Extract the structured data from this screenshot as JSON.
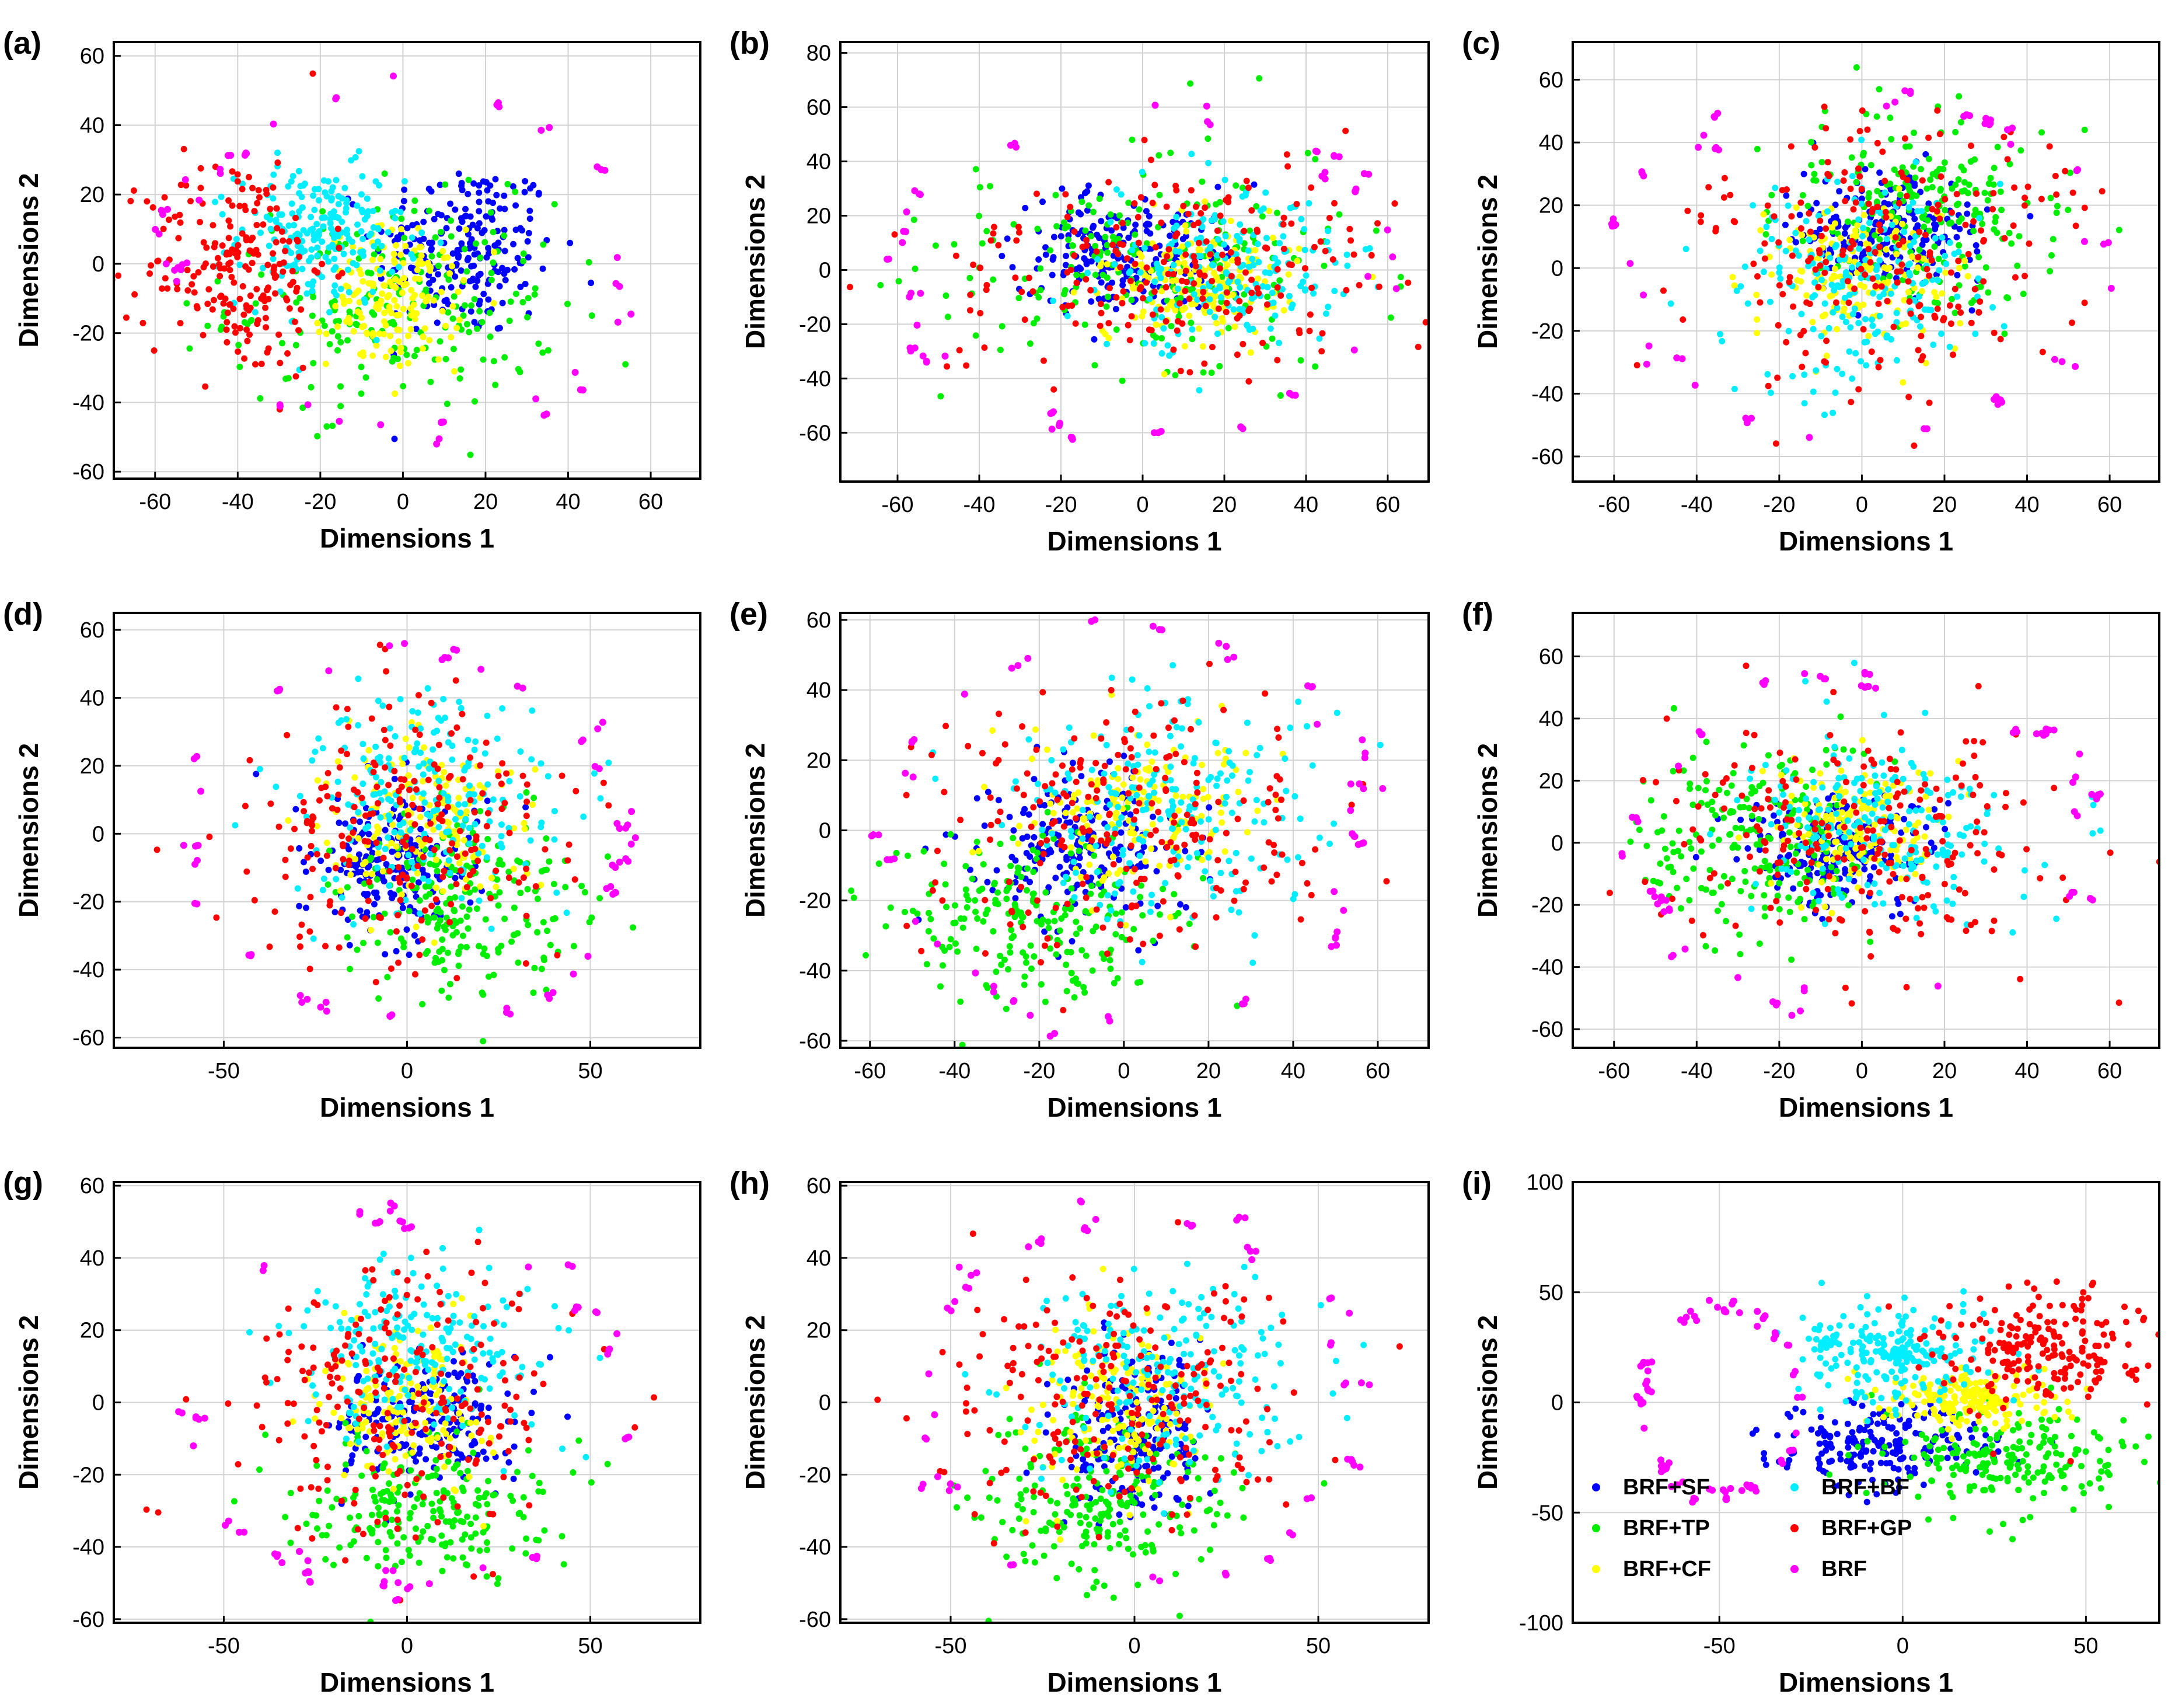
{
  "colors": {
    "BRF+SF": "#0000ff",
    "BRF+TP": "#00ee00",
    "BRF+CF": "#ffff00",
    "BRF+BF": "#00eeff",
    "BRF+GP": "#ff0000",
    "BRF": "#ff00ff",
    "grid": "#d2d2d2",
    "frame": "#000000"
  },
  "legend": {
    "panel": "(i)",
    "entries": [
      "BRF+SF",
      "BRF+TP",
      "BRF+CF",
      "BRF+BF",
      "BRF+GP",
      "BRF"
    ]
  },
  "chart_data": [
    {
      "type": "scatter",
      "panel": "(a)",
      "xlabel": "Dimensions 1",
      "ylabel": "Dimensions 2",
      "xlim": [
        -70,
        72
      ],
      "ylim": [
        -62,
        64
      ],
      "xticks": [
        -60,
        -40,
        -20,
        0,
        20,
        40,
        60
      ],
      "yticks": [
        -60,
        -40,
        -20,
        0,
        20,
        40,
        60
      ],
      "series": [
        {
          "name": "BRF+SF",
          "center": [
            15,
            4
          ],
          "spread": [
            11,
            13
          ],
          "count": 220
        },
        {
          "name": "BRF+TP",
          "center": [
            -2,
            -12
          ],
          "spread": [
            20,
            15
          ],
          "count": 220
        },
        {
          "name": "BRF+CF",
          "center": [
            -2,
            -10
          ],
          "spread": [
            8,
            10
          ],
          "count": 170
        },
        {
          "name": "BRF+BF",
          "center": [
            -20,
            8
          ],
          "spread": [
            10,
            10
          ],
          "count": 220
        },
        {
          "name": "BRF+GP",
          "center": [
            -40,
            0
          ],
          "spread": [
            11,
            16
          ],
          "count": 210
        },
        {
          "name": "BRF",
          "center": [
            0,
            0
          ],
          "radius": [
            58,
            52
          ],
          "count": 33,
          "outer": true
        }
      ]
    },
    {
      "type": "scatter",
      "panel": "(b)",
      "xlabel": "Dimensions 1",
      "ylabel": "Dimensions 2",
      "xlim": [
        -74,
        70
      ],
      "ylim": [
        -78,
        84
      ],
      "xticks": [
        -60,
        -40,
        -20,
        0,
        20,
        40,
        60
      ],
      "yticks": [
        -60,
        -40,
        -20,
        0,
        20,
        40,
        60,
        80
      ],
      "series": [
        {
          "name": "BRF+SF",
          "center": [
            -5,
            5
          ],
          "spread": [
            13,
            11
          ],
          "count": 200
        },
        {
          "name": "BRF+TP",
          "center": [
            0,
            0
          ],
          "spread": [
            24,
            18
          ],
          "count": 220
        },
        {
          "name": "BRF+CF",
          "center": [
            15,
            -5
          ],
          "spread": [
            11,
            11
          ],
          "count": 190
        },
        {
          "name": "BRF+BF",
          "center": [
            20,
            0
          ],
          "spread": [
            15,
            15
          ],
          "count": 200
        },
        {
          "name": "BRF+GP",
          "center": [
            10,
            0
          ],
          "spread": [
            26,
            20
          ],
          "count": 220
        },
        {
          "name": "BRF",
          "center": [
            0,
            0
          ],
          "radius": [
            62,
            62
          ],
          "count": 32,
          "outer": true
        }
      ]
    },
    {
      "type": "scatter",
      "panel": "(c)",
      "xlabel": "Dimensions 1",
      "ylabel": "Dimensions 2",
      "xlim": [
        -70,
        72
      ],
      "ylim": [
        -68,
        72
      ],
      "xticks": [
        -60,
        -40,
        -20,
        0,
        20,
        40,
        60
      ],
      "yticks": [
        -60,
        -40,
        -20,
        0,
        20,
        40,
        60
      ],
      "series": [
        {
          "name": "BRF+SF",
          "center": [
            5,
            12
          ],
          "spread": [
            11,
            9
          ],
          "count": 200
        },
        {
          "name": "BRF+TP",
          "center": [
            15,
            18
          ],
          "spread": [
            15,
            16
          ],
          "count": 220
        },
        {
          "name": "BRF+CF",
          "center": [
            0,
            -2
          ],
          "spread": [
            11,
            12
          ],
          "count": 170
        },
        {
          "name": "BRF+BF",
          "center": [
            0,
            -5
          ],
          "spread": [
            14,
            16
          ],
          "count": 210
        },
        {
          "name": "BRF+GP",
          "center": [
            5,
            5
          ],
          "spread": [
            23,
            20
          ],
          "count": 220
        },
        {
          "name": "BRF",
          "center": [
            0,
            0
          ],
          "radius": [
            60,
            58
          ],
          "count": 32,
          "outer": true
        }
      ]
    },
    {
      "type": "scatter",
      "panel": "(d)",
      "xlabel": "Dimensions 1",
      "ylabel": "Dimensions 2",
      "xlim": [
        -80,
        80
      ],
      "ylim": [
        -63,
        65
      ],
      "xticks": [
        -50,
        0,
        50
      ],
      "yticks": [
        -60,
        -40,
        -20,
        0,
        20,
        40,
        60
      ],
      "series": [
        {
          "name": "BRF+SF",
          "center": [
            -5,
            -8
          ],
          "spread": [
            11,
            11
          ],
          "count": 200
        },
        {
          "name": "BRF+TP",
          "center": [
            15,
            -20
          ],
          "spread": [
            16,
            14
          ],
          "count": 220
        },
        {
          "name": "BRF+CF",
          "center": [
            5,
            3
          ],
          "spread": [
            12,
            12
          ],
          "count": 170
        },
        {
          "name": "BRF+BF",
          "center": [
            5,
            12
          ],
          "spread": [
            18,
            16
          ],
          "count": 210
        },
        {
          "name": "BRF+GP",
          "center": [
            0,
            0
          ],
          "spread": [
            22,
            20
          ],
          "count": 220
        },
        {
          "name": "BRF",
          "center": [
            0,
            0
          ],
          "radius": [
            62,
            58
          ],
          "count": 34,
          "outer": true
        }
      ]
    },
    {
      "type": "scatter",
      "panel": "(e)",
      "xlabel": "Dimensions 1",
      "ylabel": "Dimensions 2",
      "xlim": [
        -67,
        72
      ],
      "ylim": [
        -62,
        62
      ],
      "xticks": [
        -60,
        -40,
        -20,
        0,
        20,
        40,
        60
      ],
      "yticks": [
        -60,
        -40,
        -20,
        0,
        20,
        40,
        60
      ],
      "series": [
        {
          "name": "BRF+SF",
          "center": [
            -10,
            -5
          ],
          "spread": [
            12,
            11
          ],
          "count": 200
        },
        {
          "name": "BRF+TP",
          "center": [
            -20,
            -25
          ],
          "spread": [
            17,
            13
          ],
          "count": 220
        },
        {
          "name": "BRF+CF",
          "center": [
            5,
            5
          ],
          "spread": [
            14,
            12
          ],
          "count": 170
        },
        {
          "name": "BRF+BF",
          "center": [
            10,
            5
          ],
          "spread": [
            18,
            16
          ],
          "count": 210
        },
        {
          "name": "BRF+GP",
          "center": [
            0,
            0
          ],
          "spread": [
            24,
            20
          ],
          "count": 220
        },
        {
          "name": "BRF",
          "center": [
            0,
            0
          ],
          "radius": [
            60,
            58
          ],
          "count": 33,
          "outer": true
        }
      ]
    },
    {
      "type": "scatter",
      "panel": "(f)",
      "xlabel": "Dimensions 1",
      "ylabel": "Dimensions 2",
      "xlim": [
        -70,
        72
      ],
      "ylim": [
        -66,
        74
      ],
      "xticks": [
        -60,
        -40,
        -20,
        0,
        20,
        40,
        60
      ],
      "yticks": [
        -60,
        -40,
        -20,
        0,
        20,
        40,
        60
      ],
      "series": [
        {
          "name": "BRF+SF",
          "center": [
            -5,
            -3
          ],
          "spread": [
            12,
            9
          ],
          "count": 200
        },
        {
          "name": "BRF+TP",
          "center": [
            -25,
            0
          ],
          "spread": [
            14,
            17
          ],
          "count": 220
        },
        {
          "name": "BRF+CF",
          "center": [
            0,
            5
          ],
          "spread": [
            10,
            10
          ],
          "count": 170
        },
        {
          "name": "BRF+BF",
          "center": [
            5,
            5
          ],
          "spread": [
            16,
            14
          ],
          "count": 210
        },
        {
          "name": "BRF+GP",
          "center": [
            0,
            0
          ],
          "spread": [
            23,
            18
          ],
          "count": 220
        },
        {
          "name": "BRF",
          "center": [
            0,
            0
          ],
          "radius": [
            58,
            56
          ],
          "count": 32,
          "outer": true
        }
      ]
    },
    {
      "type": "scatter",
      "panel": "(g)",
      "xlabel": "Dimensions 1",
      "ylabel": "Dimensions 2",
      "xlim": [
        -80,
        80
      ],
      "ylim": [
        -61,
        61
      ],
      "xticks": [
        -50,
        0,
        50
      ],
      "yticks": [
        -60,
        -40,
        -20,
        0,
        20,
        40,
        60
      ],
      "series": [
        {
          "name": "BRF+SF",
          "center": [
            5,
            -5
          ],
          "spread": [
            12,
            9
          ],
          "count": 200
        },
        {
          "name": "BRF+TP",
          "center": [
            5,
            -28
          ],
          "spread": [
            16,
            10
          ],
          "count": 220
        },
        {
          "name": "BRF+CF",
          "center": [
            0,
            0
          ],
          "spread": [
            11,
            11
          ],
          "count": 170
        },
        {
          "name": "BRF+BF",
          "center": [
            5,
            15
          ],
          "spread": [
            18,
            12
          ],
          "count": 210
        },
        {
          "name": "BRF+GP",
          "center": [
            0,
            0
          ],
          "spread": [
            22,
            19
          ],
          "count": 220
        },
        {
          "name": "BRF",
          "center": [
            0,
            0
          ],
          "radius": [
            62,
            53
          ],
          "count": 34,
          "outer": true
        }
      ]
    },
    {
      "type": "scatter",
      "panel": "(h)",
      "xlabel": "Dimensions 1",
      "ylabel": "Dimensions 2",
      "xlim": [
        -80,
        80
      ],
      "ylim": [
        -61,
        61
      ],
      "xticks": [
        -50,
        0,
        50
      ],
      "yticks": [
        -60,
        -40,
        -20,
        0,
        20,
        40,
        60
      ],
      "series": [
        {
          "name": "BRF+SF",
          "center": [
            0,
            -10
          ],
          "spread": [
            10,
            12
          ],
          "count": 200
        },
        {
          "name": "BRF+TP",
          "center": [
            -10,
            -28
          ],
          "spread": [
            16,
            12
          ],
          "count": 220
        },
        {
          "name": "BRF+CF",
          "center": [
            -5,
            0
          ],
          "spread": [
            12,
            12
          ],
          "count": 170
        },
        {
          "name": "BRF+BF",
          "center": [
            5,
            10
          ],
          "spread": [
            18,
            14
          ],
          "count": 210
        },
        {
          "name": "BRF+GP",
          "center": [
            0,
            0
          ],
          "spread": [
            23,
            18
          ],
          "count": 220
        },
        {
          "name": "BRF",
          "center": [
            0,
            0
          ],
          "radius": [
            62,
            55
          ],
          "count": 34,
          "outer": true
        }
      ]
    },
    {
      "type": "scatter",
      "panel": "(i)",
      "xlabel": "Dimensions 1",
      "ylabel": "Dimensions 2",
      "xlim": [
        -90,
        70
      ],
      "ylim": [
        -100,
        100
      ],
      "xticks": [
        -50,
        0,
        50
      ],
      "yticks": [
        -100,
        -50,
        0,
        50,
        100
      ],
      "series": [
        {
          "name": "BRF+SF",
          "center": [
            -5,
            -20
          ],
          "spread": [
            16,
            9
          ],
          "count": 210
        },
        {
          "name": "BRF+TP",
          "center": [
            30,
            -25
          ],
          "spread": [
            16,
            12
          ],
          "count": 200
        },
        {
          "name": "BRF+CF",
          "center": [
            18,
            2
          ],
          "spread": [
            11,
            6
          ],
          "count": 200
        },
        {
          "name": "BRF+BF",
          "center": [
            -2,
            22
          ],
          "spread": [
            13,
            11
          ],
          "count": 210
        },
        {
          "name": "BRF+GP",
          "center": [
            40,
            25
          ],
          "spread": [
            14,
            13
          ],
          "count": 210
        },
        {
          "name": "BRF",
          "center": [
            -50,
            0
          ],
          "radius": [
            22,
            45
          ],
          "count": 45,
          "outer": true
        }
      ]
    }
  ]
}
